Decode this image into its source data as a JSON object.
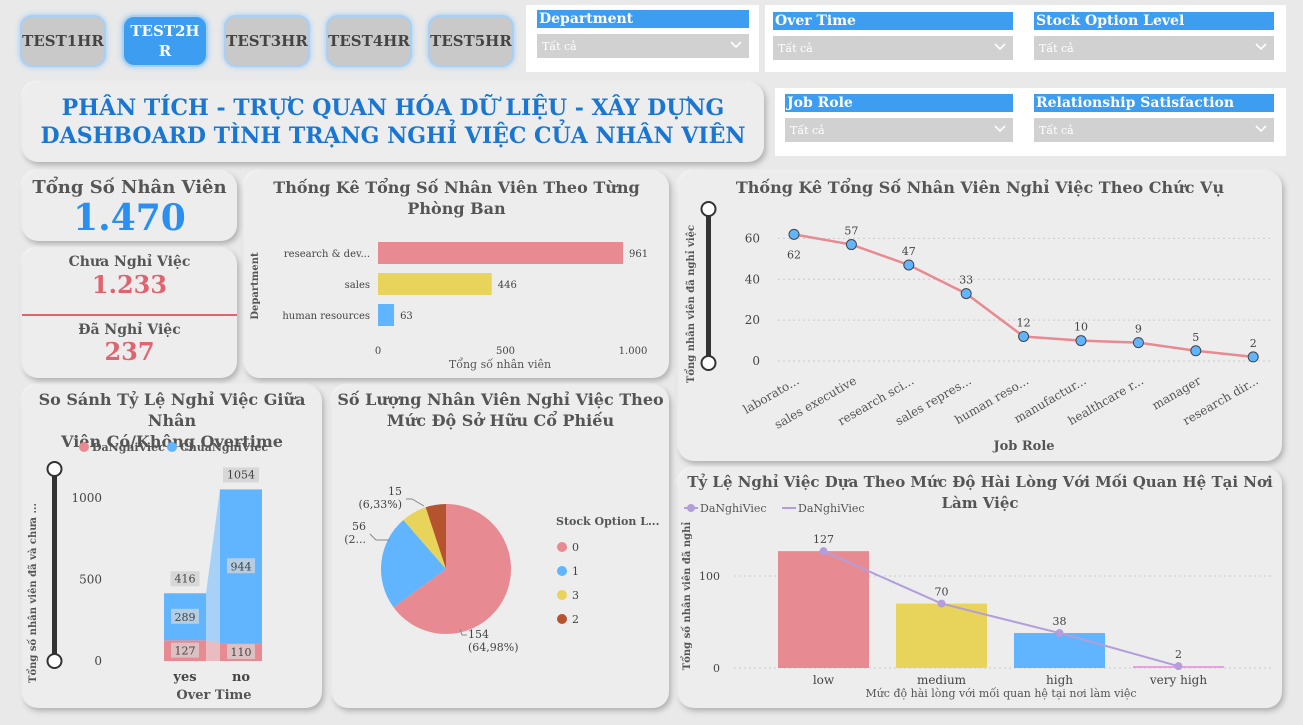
{
  "tabs": [
    "TEST1HR",
    "TEST2HR",
    "TEST3HR",
    "TEST4HR",
    "TEST5HR"
  ],
  "tab_active_lines": [
    "TEST2H",
    "R"
  ],
  "slicers": {
    "department": {
      "label": "Department",
      "value": "Tất cả"
    },
    "over_time": {
      "label": "Over Time",
      "value": "Tất cả"
    },
    "stock_option": {
      "label": "Stock Option Level",
      "value": "Tất cả"
    },
    "job_role": {
      "label": "Job Role",
      "value": "Tất cả"
    },
    "relationship": {
      "label": "Relationship Satisfaction",
      "value": "Tất cả"
    }
  },
  "header": {
    "line1": "PHÂN TÍCH - TRỰC QUAN HÓA DỮ LIỆU - XÂY DỰNG",
    "line2": "DASHBOARD TÌNH TRẠNG NGHỈ VIỆC CỦA NHÂN VIÊN"
  },
  "kpi": {
    "total_label": "Tổng Số Nhân Viên",
    "total_value": "1.470",
    "stay_label": "Chưa Nghỉ Việc",
    "stay_value": "1.233",
    "left_label": "Đã Nghỉ Việc",
    "left_value": "237"
  },
  "colors": {
    "blue": "#61b5ff",
    "pink": "#e88a92",
    "yellow": "#e8d45a",
    "brown": "#b5532f",
    "purple": "#b39ddb",
    "title_blue": "#1976d2",
    "accent_blue": "#3d9df1"
  },
  "chart_data": [
    {
      "type": "bar",
      "title": "Thống Kê Tổng Số Nhân Viên Theo Từng Phòng Ban",
      "title_lines": [
        "Thống Kê Tổng Số Nhân Viên Theo Từng",
        "Phòng Ban"
      ],
      "orientation": "horizontal",
      "categories": [
        "research & dev...",
        "sales",
        "human resources"
      ],
      "values": [
        961,
        446,
        63
      ],
      "ylabel": "Department",
      "xlabel": "Tổng số nhân viên",
      "xlim": [
        0,
        1000
      ],
      "xticks": [
        "0",
        "500",
        "1.000"
      ],
      "bar_colors": [
        "#e88a92",
        "#e8d45a",
        "#61b5ff"
      ]
    },
    {
      "type": "line",
      "title": "Thống Kê Tổng Số Nhân Viên Nghỉ Việc Theo Chức Vụ",
      "categories": [
        "laborato...",
        "sales executive",
        "research sci...",
        "sales repres...",
        "human reso...",
        "manufactur...",
        "healthcare r...",
        "manager",
        "research dir..."
      ],
      "values": [
        62,
        57,
        47,
        33,
        12,
        10,
        9,
        5,
        2
      ],
      "xlabel": "Job Role",
      "ylabel": "Tổng nhân viên đã nghỉ việc",
      "ylim": [
        0,
        70
      ],
      "yticks": [
        "0",
        "20",
        "40",
        "60"
      ]
    },
    {
      "type": "bar",
      "stacked": true,
      "title": "So Sánh Tỷ Lệ Nghỉ Việc Giữa Nhân Viên Có/Không Overtime",
      "title_lines": [
        "So Sánh Tỷ Lệ Nghỉ Việc Giữa Nhân",
        "Viên Có/Không Overtime"
      ],
      "categories": [
        "yes",
        "no"
      ],
      "series": [
        {
          "name": "DaNghiViec",
          "values": [
            127,
            110
          ]
        },
        {
          "name": "ChuaNghiViec",
          "values": [
            289,
            944
          ]
        }
      ],
      "totals": [
        416,
        1054
      ],
      "xlabel": "Over Time",
      "ylabel": "Tổng số nhân viên đã và chưa ...",
      "ylim": [
        0,
        1200
      ],
      "yticks": [
        "0",
        "500",
        "1000"
      ]
    },
    {
      "type": "pie",
      "title": "Số Lượng Nhân Viên Nghỉ Việc Theo Mức Độ Sở Hữu Cổ Phiếu",
      "title_lines": [
        "Số Lượng Nhân Viên Nghỉ Việc Theo",
        "Mức Độ Sở Hữu Cổ Phiếu"
      ],
      "legend_title": "Stock Option L...",
      "slices": [
        {
          "label": "0",
          "value": 154
        },
        {
          "label": "1",
          "value": 56
        },
        {
          "label": "3",
          "value": 15
        },
        {
          "label": "2",
          "value": 12
        }
      ],
      "data_labels": [
        {
          "count": "154",
          "pct": "(64,98%)"
        },
        {
          "count": "56",
          "pct": "(2..."
        },
        {
          "count": "15",
          "pct": "(6,33%)"
        }
      ]
    },
    {
      "type": "bar",
      "title": "Tỷ Lệ Nghỉ Việc Dựa Theo Mức Độ Hài Lòng Với Mối Quan Hệ Tại Nơi Làm Việc",
      "categories": [
        "low",
        "medium",
        "high",
        "very high"
      ],
      "series": [
        {
          "name": "DaNghiViec",
          "values": [
            127,
            70,
            38,
            2
          ]
        }
      ],
      "legend": [
        "DaNghiViec",
        "DaNghiViec"
      ],
      "xlabel": "Mức độ hài lòng với mối quan hệ tại nơi làm việc",
      "ylabel": "Tổng số nhân viên đã nghỉ",
      "ylim": [
        0,
        140
      ],
      "yticks": [
        "0",
        "100"
      ]
    }
  ]
}
